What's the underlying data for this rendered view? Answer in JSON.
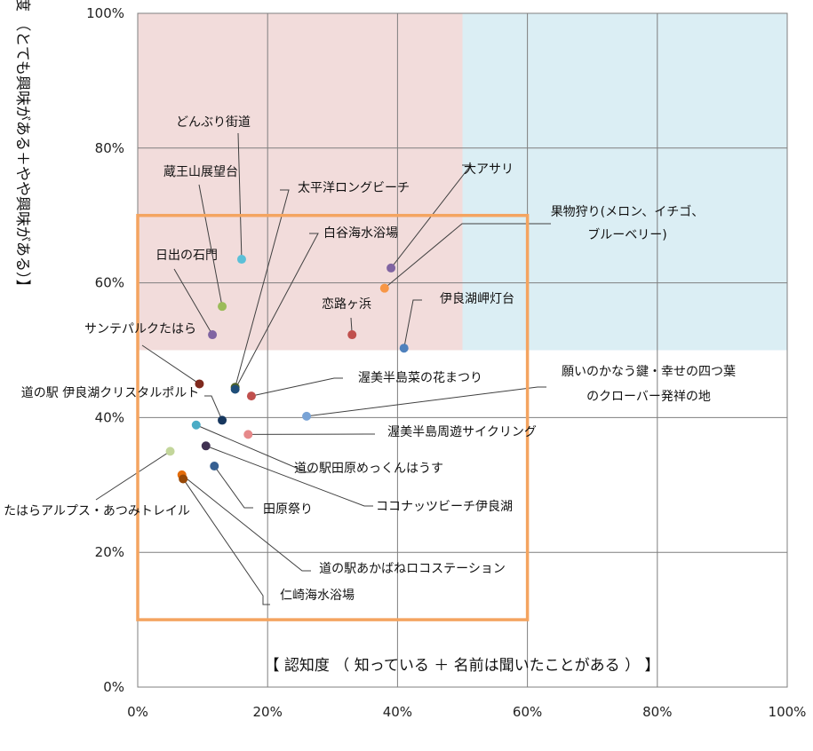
{
  "chart_data": {
    "type": "scatter",
    "xlabel": "【 認知度 （ 知っている ＋ 名前は聞いたことがある ） 】",
    "ylabel": "度 （とても興味がある＋やや興味がある）】",
    "xlim": [
      0,
      100
    ],
    "ylim": [
      0,
      100
    ],
    "x_ticks": [
      "0%",
      "20%",
      "40%",
      "60%",
      "80%",
      "100%"
    ],
    "y_ticks": [
      "0%",
      "20%",
      "40%",
      "60%",
      "80%",
      "100%"
    ],
    "grid": true,
    "regions": [
      {
        "x": [
          0,
          50
        ],
        "y": [
          50,
          100
        ],
        "color": "#f2dcdb"
      },
      {
        "x": [
          50,
          100
        ],
        "y": [
          50,
          100
        ],
        "color": "#dbeef4"
      }
    ],
    "highlight_box": {
      "x": [
        0,
        60
      ],
      "y": [
        10,
        70
      ],
      "color": "#f4a460"
    },
    "points": [
      {
        "label": "どんぶり街道",
        "x": 16,
        "y": 63.5,
        "color": "#5bc0d8"
      },
      {
        "label": "大アサリ",
        "x": 39,
        "y": 62.2,
        "color": "#8064a2"
      },
      {
        "label": "蔵王山展望台",
        "x": 13,
        "y": 56.5,
        "color": "#9bbb59"
      },
      {
        "label": "太平洋ロングビーチ",
        "x": 15,
        "y": 44.5,
        "color": "#4f6228"
      },
      {
        "label": "白谷海水浴場",
        "x": 15,
        "y": 44.2,
        "color": "#1f4e79"
      },
      {
        "label": "果物狩り(メロン、イチゴ、ブルーベリー)",
        "x": 38,
        "y": 59.2,
        "color": "#f79646"
      },
      {
        "label": "日出の石門",
        "x": 11.5,
        "y": 52.3,
        "color": "#8064a2"
      },
      {
        "label": "恋路ヶ浜",
        "x": 33,
        "y": 52.3,
        "color": "#c0504d"
      },
      {
        "label": "伊良湖岬灯台",
        "x": 41,
        "y": 50.3,
        "color": "#4f81bd"
      },
      {
        "label": "サンテパルクたはら",
        "x": 9.5,
        "y": 45,
        "color": "#7f2a1e"
      },
      {
        "label": "渥美半島菜の花まつり",
        "x": 17.5,
        "y": 43.2,
        "color": "#c0504d"
      },
      {
        "label": "願いのかなう鍵・幸せの四つ葉のクローバー発祥の地",
        "x": 26,
        "y": 40.2,
        "color": "#79a3d6"
      },
      {
        "label": "道の駅 伊良湖クリスタルポルト",
        "x": 13,
        "y": 39.6,
        "color": "#17375e"
      },
      {
        "label": "渥美半島周遊サイクリング",
        "x": 17,
        "y": 37.5,
        "color": "#e6898a"
      },
      {
        "label": "道の駅田原めっくんはうす",
        "x": 9,
        "y": 38.9,
        "color": "#4bacc6"
      },
      {
        "label": "ココナッツビーチ伊良湖",
        "x": 10.5,
        "y": 35.8,
        "color": "#403152"
      },
      {
        "label": "たはらアルプス・あつみトレイル",
        "x": 5,
        "y": 35,
        "color": "#c3d69b"
      },
      {
        "label": "田原祭り",
        "x": 11.8,
        "y": 32.8,
        "color": "#366092"
      },
      {
        "label": "道の駅あかばねロコステーション",
        "x": 6.8,
        "y": 31.5,
        "color": "#e46c0a"
      },
      {
        "label": "仁崎海水浴場",
        "x": 7,
        "y": 30.9,
        "color": "#974806"
      }
    ]
  }
}
